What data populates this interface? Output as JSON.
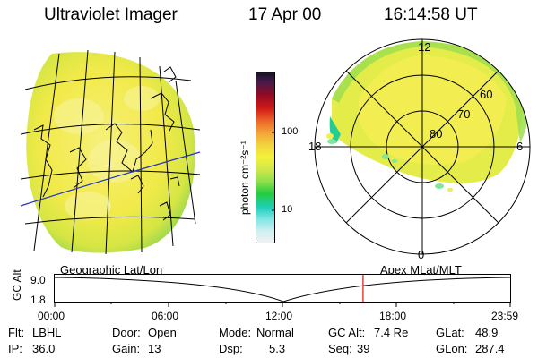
{
  "header": {
    "instrument": "Ultraviolet Imager",
    "date": "17 Apr 00",
    "time": "16:14:58 UT"
  },
  "colorbar": {
    "unit_label": "photon cm⁻²s⁻¹",
    "ticks": [
      "100",
      "10"
    ],
    "colors": [
      "#f2f2f2",
      "#cfeff0",
      "#7fe6e6",
      "#1ccfb7",
      "#26cc3f",
      "#8ee04a",
      "#cfe84a",
      "#f2f23a",
      "#f2d63c",
      "#f2a73a",
      "#ee6a2a",
      "#d01818",
      "#8e0a25",
      "#4a1a4a",
      "#121128"
    ]
  },
  "polar_plot": {
    "mlt_labels": [
      "12",
      "18",
      "6",
      "0"
    ],
    "latitude_labels": [
      "60",
      "70",
      "80"
    ]
  },
  "timeline": {
    "left_label": "Geographic Lat/Lon",
    "right_label": "Apex MLat/MLT",
    "axis_title": "GC Alt",
    "y_labels": [
      "9.0",
      "1.8"
    ],
    "x_labels": [
      "00:00",
      "06:00",
      "12:00",
      "18:00",
      "23:59"
    ],
    "current_time_fraction": 0.677
  },
  "status": {
    "filter_label": "Flt:",
    "filter_value": "LBHL",
    "ip_label": "IP:",
    "ip_value": "36.0",
    "door_label": "Door:",
    "door_value": "Open",
    "gain_label": "Gain:",
    "gain_value": "13",
    "mode_label": "Mode:",
    "mode_value": "Normal",
    "dsp_label": "Dsp:",
    "dsp_value": "5.3",
    "gcalt_label": "GC Alt:",
    "gcalt_value": "7.4 Re",
    "seq_label": "Seq:",
    "seq_value": "39",
    "glat_label": "GLat:",
    "glat_value": "48.9",
    "glon_label": "GLon:",
    "glon_value": "287.4"
  }
}
